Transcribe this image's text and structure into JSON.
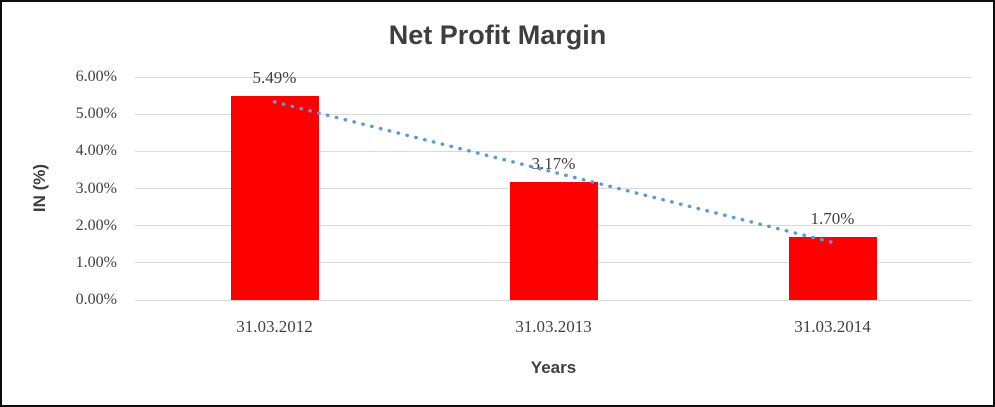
{
  "chart_data": {
    "type": "bar",
    "title": "Net Profit Margin",
    "xlabel": "Years",
    "ylabel": "IN (%)",
    "categories": [
      "31.03.2012",
      "31.03.2013",
      "31.03.2014"
    ],
    "values": [
      5.49,
      3.17,
      1.7
    ],
    "data_labels": [
      "5.49%",
      "3.17%",
      "1.70%"
    ],
    "yticks": [
      "0.00%",
      "1.00%",
      "2.00%",
      "3.00%",
      "4.00%",
      "5.00%",
      "6.00%"
    ],
    "ylim": [
      0,
      6
    ],
    "grid": true,
    "legend": "none",
    "colors": {
      "bar": "#ff0000",
      "gridline": "#d9d9d9",
      "text": "#404040",
      "title": "#3e3e3e",
      "trendline": "#5b9bd5"
    },
    "trendline": {
      "kind": "linear",
      "style": "dotted",
      "start_value": 5.33,
      "end_value": 1.55
    }
  }
}
